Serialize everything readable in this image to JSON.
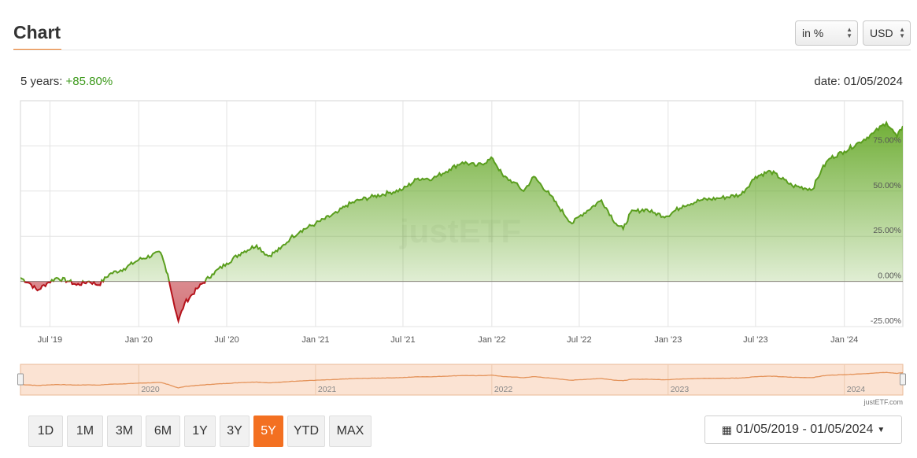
{
  "header": {
    "title": "Chart"
  },
  "controls": {
    "unit": "in %",
    "currency": "USD"
  },
  "performance": {
    "label": "5 years:",
    "value": "+85.80%",
    "date": "date: 01/05/2024"
  },
  "chart_data": {
    "type": "area",
    "ylabel_ticks": [
      "75.00%",
      "50.00%",
      "25.00%",
      "0.00%",
      "-25.00%"
    ],
    "y_ticks": [
      75,
      50,
      25,
      0,
      -25
    ],
    "ylim": [
      -25,
      100
    ],
    "x_tick_labels": [
      "Jul '19",
      "Jan '20",
      "Jul '20",
      "Jan '21",
      "Jul '21",
      "Jan '22",
      "Jul '22",
      "Jan '23",
      "Jul '23",
      "Jan '24"
    ],
    "x_tick_dates": [
      "2019-07-01",
      "2020-01-01",
      "2020-07-01",
      "2021-01-01",
      "2021-07-01",
      "2022-01-01",
      "2022-07-01",
      "2023-01-01",
      "2023-07-01",
      "2024-01-01"
    ],
    "xlim": [
      "2019-05-01",
      "2024-05-01"
    ],
    "series": [
      {
        "dates": [
          "2019-05-01",
          "2019-05-20",
          "2019-06-05",
          "2019-06-25",
          "2019-07-15",
          "2019-08-10",
          "2019-08-25",
          "2019-09-20",
          "2019-10-10",
          "2019-11-01",
          "2019-12-01",
          "2020-01-01",
          "2020-02-15",
          "2020-03-01",
          "2020-03-12",
          "2020-03-23",
          "2020-04-05",
          "2020-05-01",
          "2020-06-01",
          "2020-07-01",
          "2020-08-01",
          "2020-09-01",
          "2020-09-25",
          "2020-10-20",
          "2020-11-10",
          "2020-12-01",
          "2021-01-01",
          "2021-02-15",
          "2021-03-05",
          "2021-04-01",
          "2021-05-01",
          "2021-06-01",
          "2021-07-01",
          "2021-08-01",
          "2021-09-01",
          "2021-10-05",
          "2021-11-01",
          "2021-12-01",
          "2022-01-03",
          "2022-01-25",
          "2022-02-15",
          "2022-03-08",
          "2022-03-29",
          "2022-05-01",
          "2022-05-20",
          "2022-06-16",
          "2022-07-01",
          "2022-08-16",
          "2022-09-15",
          "2022-09-30",
          "2022-10-15",
          "2022-11-15",
          "2022-12-01",
          "2022-12-28",
          "2023-02-01",
          "2023-03-10",
          "2023-04-15",
          "2023-06-01",
          "2023-07-01",
          "2023-08-01",
          "2023-09-15",
          "2023-10-27",
          "2023-11-15",
          "2023-12-01",
          "2024-01-01",
          "2024-02-01",
          "2024-03-01",
          "2024-03-28",
          "2024-04-19",
          "2024-05-01"
        ],
        "values": [
          2,
          -1,
          -5,
          -1,
          2,
          0,
          -2,
          0,
          -2,
          4,
          7,
          12,
          16,
          4,
          -10,
          -22,
          -12,
          -4,
          4,
          10,
          16,
          20,
          14,
          18,
          24,
          28,
          32,
          38,
          42,
          45,
          47,
          49,
          51,
          57,
          57,
          62,
          66,
          64,
          68,
          58,
          55,
          50,
          58,
          48,
          41,
          32,
          36,
          45,
          32,
          29,
          38,
          40,
          38,
          36,
          42,
          45,
          46,
          48,
          58,
          61,
          53,
          51,
          62,
          68,
          72,
          77,
          82,
          88,
          80,
          86
        ]
      }
    ]
  },
  "navigator": {
    "years": [
      "2020",
      "2021",
      "2022",
      "2023",
      "2024"
    ],
    "credit": "justETF.com"
  },
  "watermark": "justETF",
  "range_buttons": [
    "1D",
    "1M",
    "3M",
    "6M",
    "1Y",
    "3Y",
    "5Y",
    "YTD",
    "MAX"
  ],
  "active_range": "5Y",
  "date_range": "01/05/2019 - 01/05/2024",
  "colors": {
    "positive": "#5a9e1e",
    "negative": "#b5121b",
    "accent": "#f37021",
    "navigator_line": "#e4935a"
  }
}
